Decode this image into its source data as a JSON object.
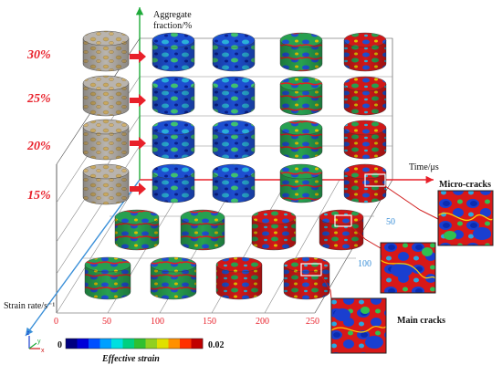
{
  "aggregate_axis": {
    "title_line1": "Aggregate",
    "title_line2": "fraction/%",
    "fractions": [
      "30%",
      "25%",
      "20%",
      "15%"
    ]
  },
  "time_axis": {
    "title": "Time/μs",
    "ticks": [
      "0",
      "50",
      "100",
      "150",
      "200",
      "250"
    ]
  },
  "strain_axis": {
    "title": "Strain rate/s⁻¹",
    "ticks": [
      "50",
      "100"
    ]
  },
  "callouts": {
    "micro": "Micro-cracks",
    "main": "Main cracks"
  },
  "colorbar": {
    "min": "0",
    "max": "0.02",
    "label": "Effective strain",
    "colors": [
      "#000080",
      "#0000d8",
      "#0050ff",
      "#00a0ff",
      "#00e0e0",
      "#00d080",
      "#30c030",
      "#90d020",
      "#e0e000",
      "#ff9000",
      "#ff3000",
      "#c00000"
    ]
  },
  "triad": {
    "z": "z",
    "y": "y",
    "x": "x"
  }
}
